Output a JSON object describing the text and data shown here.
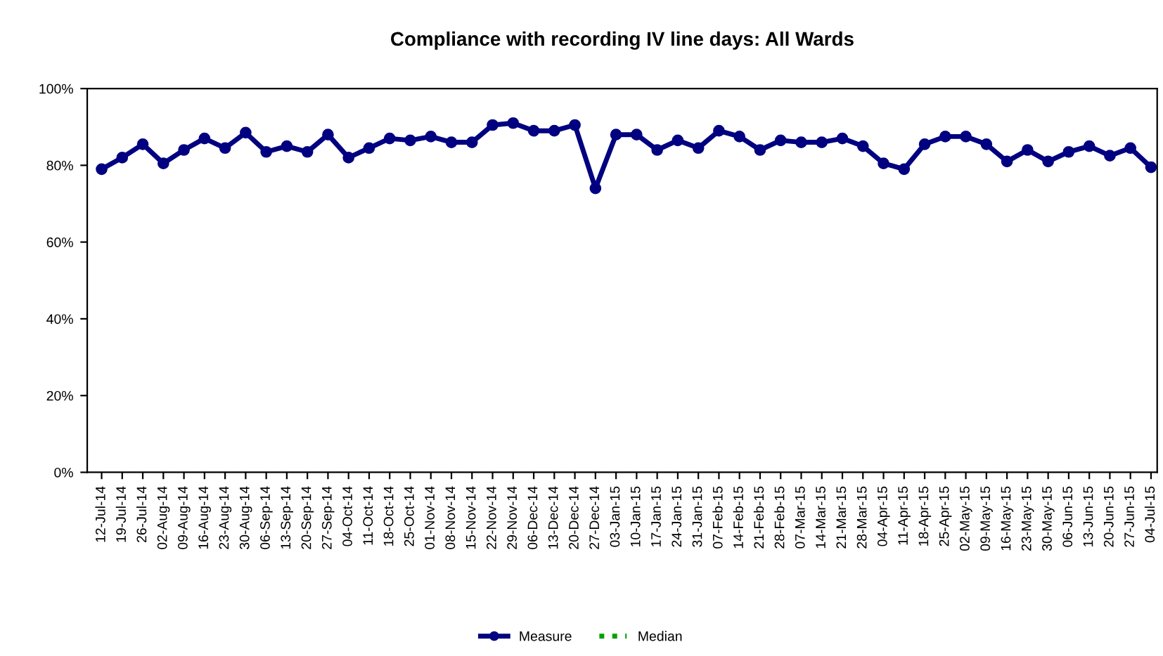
{
  "chart_data": {
    "type": "line",
    "title": "Compliance with recording IV line days: All Wards",
    "categories": [
      "12-Jul-14",
      "19-Jul-14",
      "26-Jul-14",
      "02-Aug-14",
      "09-Aug-14",
      "16-Aug-14",
      "23-Aug-14",
      "30-Aug-14",
      "06-Sep-14",
      "13-Sep-14",
      "20-Sep-14",
      "27-Sep-14",
      "04-Oct-14",
      "11-Oct-14",
      "18-Oct-14",
      "25-Oct-14",
      "01-Nov-14",
      "08-Nov-14",
      "15-Nov-14",
      "22-Nov-14",
      "29-Nov-14",
      "06-Dec-14",
      "13-Dec-14",
      "20-Dec-14",
      "27-Dec-14",
      "03-Jan-15",
      "10-Jan-15",
      "17-Jan-15",
      "24-Jan-15",
      "31-Jan-15",
      "07-Feb-15",
      "14-Feb-15",
      "21-Feb-15",
      "28-Feb-15",
      "07-Mar-15",
      "14-Mar-15",
      "21-Mar-15",
      "28-Mar-15",
      "04-Apr-15",
      "11-Apr-15",
      "18-Apr-15",
      "25-Apr-15",
      "02-May-15",
      "09-May-15",
      "16-May-15",
      "23-May-15",
      "30-May-15",
      "06-Jun-15",
      "13-Jun-15",
      "20-Jun-15",
      "27-Jun-15",
      "04-Jul-15"
    ],
    "series": [
      {
        "name": "Measure",
        "color": "#000080",
        "marker": "circle",
        "line_style": "solid",
        "values": [
          79,
          82,
          85.5,
          80.5,
          84,
          87,
          84.5,
          88.5,
          83.5,
          85,
          83.5,
          88,
          82,
          84.5,
          87,
          86.5,
          87.5,
          86,
          86,
          90.5,
          91,
          89,
          89,
          90.5,
          74,
          88,
          88,
          84,
          86.5,
          84.5,
          89,
          87.5,
          84,
          86.5,
          86,
          86,
          87,
          85,
          80.5,
          79,
          85.5,
          87.5,
          87.5,
          85.5,
          81,
          84,
          81,
          83.5,
          85,
          82.5,
          84.5,
          79.5
        ]
      },
      {
        "name": "Median",
        "color": "#00a000",
        "marker": "none",
        "line_style": "dotted",
        "values": [
          null,
          null,
          null,
          null,
          null,
          null,
          null,
          null,
          null,
          null,
          null,
          null,
          null,
          null,
          null,
          null,
          null,
          null,
          null,
          null,
          null,
          null,
          null,
          null,
          null,
          null,
          null,
          null,
          null,
          null,
          null,
          null,
          null,
          null,
          null,
          null,
          null,
          null,
          null,
          null,
          null,
          null,
          null,
          null,
          null,
          null,
          null,
          null,
          null,
          null,
          null,
          null
        ]
      }
    ],
    "ylim": [
      0,
      100
    ],
    "yticks": [
      {
        "value": 0,
        "label": "0%"
      },
      {
        "value": 20,
        "label": "20%"
      },
      {
        "value": 40,
        "label": "40%"
      },
      {
        "value": 60,
        "label": "60%"
      },
      {
        "value": 80,
        "label": "80%"
      },
      {
        "value": 100,
        "label": "100%"
      }
    ],
    "grid": false,
    "legend": "bottom"
  }
}
